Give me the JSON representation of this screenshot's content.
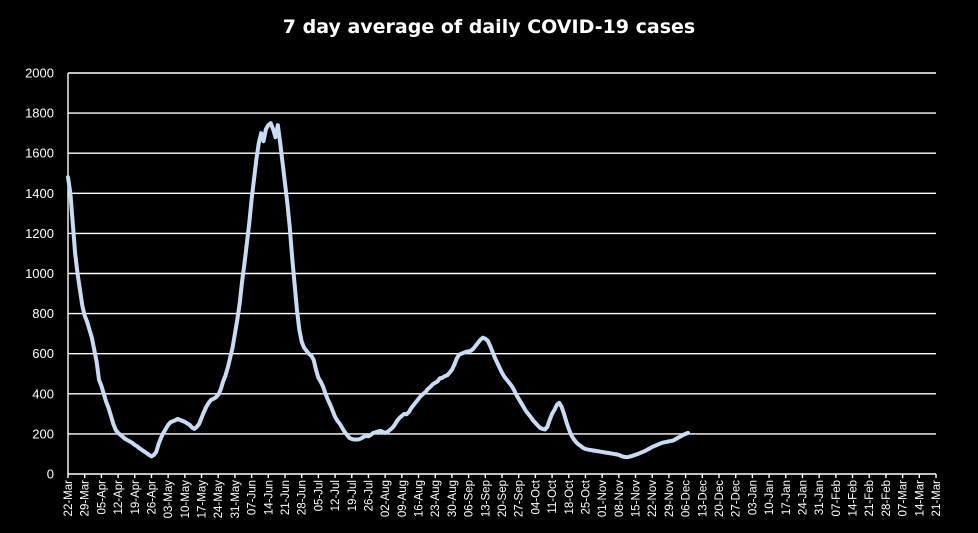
{
  "chart_data": {
    "type": "line",
    "title": "7 day average of daily COVID-19 cases",
    "xlabel": "",
    "ylabel": "",
    "ylim": [
      0,
      2000
    ],
    "yticks": [
      0,
      200,
      400,
      600,
      800,
      1000,
      1200,
      1400,
      1600,
      1800,
      2000
    ],
    "x_tick_labels": [
      "22-Mar",
      "29-Mar",
      "05-Apr",
      "12-Apr",
      "19-Apr",
      "26-Apr",
      "03-May",
      "10-May",
      "17-May",
      "24-May",
      "31-May",
      "07-Jun",
      "14-Jun",
      "21-Jun",
      "28-Jun",
      "05-Jul",
      "12-Jul",
      "19-Jul",
      "26-Jul",
      "02-Aug",
      "09-Aug",
      "16-Aug",
      "23-Aug",
      "30-Aug",
      "06-Sep",
      "13-Sep",
      "20-Sep",
      "27-Sep",
      "04-Oct",
      "11-Oct",
      "18-Oct",
      "25-Oct",
      "01-Nov",
      "08-Nov",
      "15-Nov",
      "22-Nov",
      "29-Nov",
      "06-Dec",
      "13-Dec",
      "20-Dec",
      "27-Dec",
      "03-Jan",
      "10-Jan",
      "17-Jan",
      "24-Jan",
      "31-Jan",
      "07-Feb",
      "14-Feb",
      "21-Feb",
      "28-Feb",
      "07-Mar",
      "14-Mar",
      "21-Mar"
    ],
    "grid": true,
    "legend": "none",
    "series": [
      {
        "color": "#c9dcf5",
        "points": [
          [
            0,
            1480
          ],
          [
            1,
            1400
          ],
          [
            2,
            1250
          ],
          [
            3,
            1100
          ],
          [
            4,
            1000
          ],
          [
            5,
            920
          ],
          [
            6,
            840
          ],
          [
            7,
            790
          ],
          [
            8,
            760
          ],
          [
            9,
            720
          ],
          [
            10,
            680
          ],
          [
            11,
            620
          ],
          [
            12,
            560
          ],
          [
            13,
            470
          ],
          [
            14,
            440
          ],
          [
            15,
            400
          ],
          [
            16,
            360
          ],
          [
            17,
            330
          ],
          [
            18,
            290
          ],
          [
            19,
            250
          ],
          [
            20,
            220
          ],
          [
            21,
            205
          ],
          [
            22,
            195
          ],
          [
            23,
            185
          ],
          [
            24,
            175
          ],
          [
            25,
            168
          ],
          [
            26,
            162
          ],
          [
            27,
            155
          ],
          [
            28,
            145
          ],
          [
            29,
            138
          ],
          [
            30,
            128
          ],
          [
            31,
            120
          ],
          [
            32,
            112
          ],
          [
            33,
            104
          ],
          [
            34,
            95
          ],
          [
            35,
            88
          ],
          [
            36,
            95
          ],
          [
            37,
            110
          ],
          [
            38,
            150
          ],
          [
            39,
            180
          ],
          [
            40,
            205
          ],
          [
            41,
            225
          ],
          [
            42,
            245
          ],
          [
            43,
            258
          ],
          [
            44,
            263
          ],
          [
            45,
            268
          ],
          [
            46,
            275
          ],
          [
            47,
            270
          ],
          [
            48,
            265
          ],
          [
            49,
            260
          ],
          [
            50,
            252
          ],
          [
            51,
            245
          ],
          [
            52,
            232
          ],
          [
            53,
            225
          ],
          [
            54,
            235
          ],
          [
            55,
            250
          ],
          [
            56,
            280
          ],
          [
            57,
            310
          ],
          [
            58,
            335
          ],
          [
            59,
            355
          ],
          [
            60,
            370
          ],
          [
            61,
            375
          ],
          [
            62,
            382
          ],
          [
            63,
            395
          ],
          [
            64,
            420
          ],
          [
            65,
            460
          ],
          [
            66,
            490
          ],
          [
            67,
            530
          ],
          [
            68,
            580
          ],
          [
            69,
            630
          ],
          [
            70,
            700
          ],
          [
            71,
            770
          ],
          [
            72,
            850
          ],
          [
            73,
            960
          ],
          [
            74,
            1050
          ],
          [
            75,
            1150
          ],
          [
            76,
            1250
          ],
          [
            77,
            1370
          ],
          [
            78,
            1470
          ],
          [
            79,
            1570
          ],
          [
            80,
            1650
          ],
          [
            81,
            1700
          ],
          [
            82,
            1660
          ],
          [
            83,
            1720
          ],
          [
            84,
            1740
          ],
          [
            85,
            1750
          ],
          [
            86,
            1720
          ],
          [
            87,
            1680
          ],
          [
            88,
            1740
          ],
          [
            89,
            1650
          ],
          [
            90,
            1550
          ],
          [
            91,
            1450
          ],
          [
            92,
            1350
          ],
          [
            93,
            1230
          ],
          [
            94,
            1080
          ],
          [
            95,
            950
          ],
          [
            96,
            820
          ],
          [
            97,
            720
          ],
          [
            98,
            660
          ],
          [
            99,
            630
          ],
          [
            100,
            615
          ],
          [
            101,
            600
          ],
          [
            102,
            590
          ],
          [
            103,
            570
          ],
          [
            104,
            520
          ],
          [
            105,
            480
          ],
          [
            106,
            460
          ],
          [
            107,
            435
          ],
          [
            108,
            400
          ],
          [
            109,
            370
          ],
          [
            110,
            345
          ],
          [
            111,
            315
          ],
          [
            112,
            285
          ],
          [
            113,
            265
          ],
          [
            114,
            250
          ],
          [
            115,
            230
          ],
          [
            116,
            210
          ],
          [
            117,
            195
          ],
          [
            118,
            180
          ],
          [
            119,
            175
          ],
          [
            120,
            172
          ],
          [
            121,
            172
          ],
          [
            122,
            173
          ],
          [
            123,
            178
          ],
          [
            124,
            185
          ],
          [
            125,
            190
          ],
          [
            126,
            188
          ],
          [
            127,
            195
          ],
          [
            128,
            205
          ],
          [
            129,
            208
          ],
          [
            130,
            212
          ],
          [
            131,
            215
          ],
          [
            132,
            210
          ],
          [
            133,
            205
          ],
          [
            134,
            210
          ],
          [
            135,
            220
          ],
          [
            136,
            230
          ],
          [
            137,
            245
          ],
          [
            138,
            265
          ],
          [
            139,
            280
          ],
          [
            140,
            290
          ],
          [
            141,
            300
          ],
          [
            142,
            298
          ],
          [
            143,
            310
          ],
          [
            144,
            330
          ],
          [
            145,
            345
          ],
          [
            146,
            360
          ],
          [
            147,
            375
          ],
          [
            148,
            390
          ],
          [
            149,
            400
          ],
          [
            150,
            410
          ],
          [
            151,
            425
          ],
          [
            152,
            435
          ],
          [
            153,
            448
          ],
          [
            154,
            455
          ],
          [
            155,
            462
          ],
          [
            156,
            478
          ],
          [
            157,
            480
          ],
          [
            158,
            488
          ],
          [
            159,
            492
          ],
          [
            160,
            505
          ],
          [
            161,
            520
          ],
          [
            162,
            545
          ],
          [
            163,
            575
          ],
          [
            164,
            595
          ],
          [
            165,
            600
          ],
          [
            166,
            605
          ],
          [
            167,
            610
          ],
          [
            168,
            612
          ],
          [
            169,
            615
          ],
          [
            170,
            625
          ],
          [
            171,
            640
          ],
          [
            172,
            655
          ],
          [
            173,
            670
          ],
          [
            174,
            680
          ],
          [
            175,
            675
          ],
          [
            176,
            665
          ],
          [
            177,
            640
          ],
          [
            178,
            610
          ],
          [
            179,
            580
          ],
          [
            180,
            555
          ],
          [
            181,
            530
          ],
          [
            182,
            505
          ],
          [
            183,
            485
          ],
          [
            184,
            470
          ],
          [
            185,
            455
          ],
          [
            186,
            440
          ],
          [
            187,
            420
          ],
          [
            188,
            395
          ],
          [
            189,
            375
          ],
          [
            190,
            355
          ],
          [
            191,
            335
          ],
          [
            192,
            315
          ],
          [
            193,
            300
          ],
          [
            194,
            285
          ],
          [
            195,
            268
          ],
          [
            196,
            255
          ],
          [
            197,
            242
          ],
          [
            198,
            230
          ],
          [
            199,
            225
          ],
          [
            200,
            222
          ],
          [
            201,
            235
          ],
          [
            202,
            270
          ],
          [
            203,
            300
          ],
          [
            204,
            320
          ],
          [
            205,
            345
          ],
          [
            206,
            355
          ],
          [
            207,
            335
          ],
          [
            208,
            300
          ],
          [
            209,
            260
          ],
          [
            210,
            225
          ],
          [
            211,
            195
          ],
          [
            212,
            175
          ],
          [
            213,
            160
          ],
          [
            214,
            148
          ],
          [
            215,
            140
          ],
          [
            216,
            130
          ],
          [
            217,
            125
          ],
          [
            218,
            122
          ],
          [
            219,
            120
          ],
          [
            220,
            118
          ],
          [
            221,
            116
          ],
          [
            222,
            114
          ],
          [
            223,
            112
          ],
          [
            224,
            110
          ],
          [
            225,
            108
          ],
          [
            226,
            106
          ],
          [
            227,
            104
          ],
          [
            228,
            102
          ],
          [
            229,
            100
          ],
          [
            230,
            98
          ],
          [
            231,
            95
          ],
          [
            232,
            90
          ],
          [
            233,
            86
          ],
          [
            234,
            84
          ],
          [
            235,
            85
          ],
          [
            236,
            88
          ],
          [
            237,
            92
          ],
          [
            238,
            96
          ],
          [
            239,
            100
          ],
          [
            240,
            105
          ],
          [
            241,
            110
          ],
          [
            242,
            115
          ],
          [
            243,
            122
          ],
          [
            244,
            128
          ],
          [
            245,
            135
          ],
          [
            246,
            140
          ],
          [
            247,
            145
          ],
          [
            248,
            150
          ],
          [
            249,
            155
          ],
          [
            250,
            158
          ],
          [
            251,
            160
          ],
          [
            252,
            163
          ],
          [
            253,
            165
          ],
          [
            254,
            168
          ],
          [
            255,
            175
          ],
          [
            256,
            182
          ],
          [
            257,
            188
          ],
          [
            258,
            195
          ],
          [
            259,
            200
          ],
          [
            260,
            205
          ]
        ]
      }
    ]
  }
}
